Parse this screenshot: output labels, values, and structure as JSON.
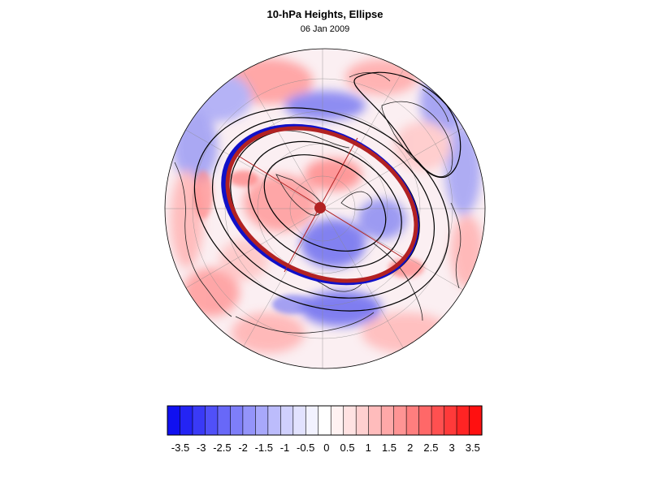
{
  "title": "10-hPa Heights, Ellipse",
  "subtitle": "06 Jan 2009",
  "colorbar": {
    "levels": [
      "-3.5",
      "-3",
      "-2.5",
      "-2",
      "-1.5",
      "-1",
      "-0.5",
      "0",
      "0.5",
      "1",
      "1.5",
      "2",
      "2.5",
      "3",
      "3.5"
    ],
    "colors": [
      "#1010f0",
      "#2424f4",
      "#3a3af6",
      "#5050f8",
      "#6868f8",
      "#7e7ef9",
      "#9494fa",
      "#a8a8fb",
      "#bcbcfc",
      "#d0d0fd",
      "#e2e2fe",
      "#f2f2ff",
      "#ffffff",
      "#fff2f2",
      "#ffe2e2",
      "#ffd0d0",
      "#ffbcbc",
      "#ffa8a8",
      "#ff9494",
      "#ff7e7e",
      "#ff6868",
      "#ff5050",
      "#ff3a3a",
      "#ff2424",
      "#ff1010"
    ],
    "negative_color": "#0000ff",
    "positive_color": "#ff0000"
  },
  "map": {
    "projection": "polar stereographic (north)",
    "ellipse_color": "#b22222",
    "ellipse_edge_color": "#1010c8",
    "center_marker_color": "#b22222"
  }
}
